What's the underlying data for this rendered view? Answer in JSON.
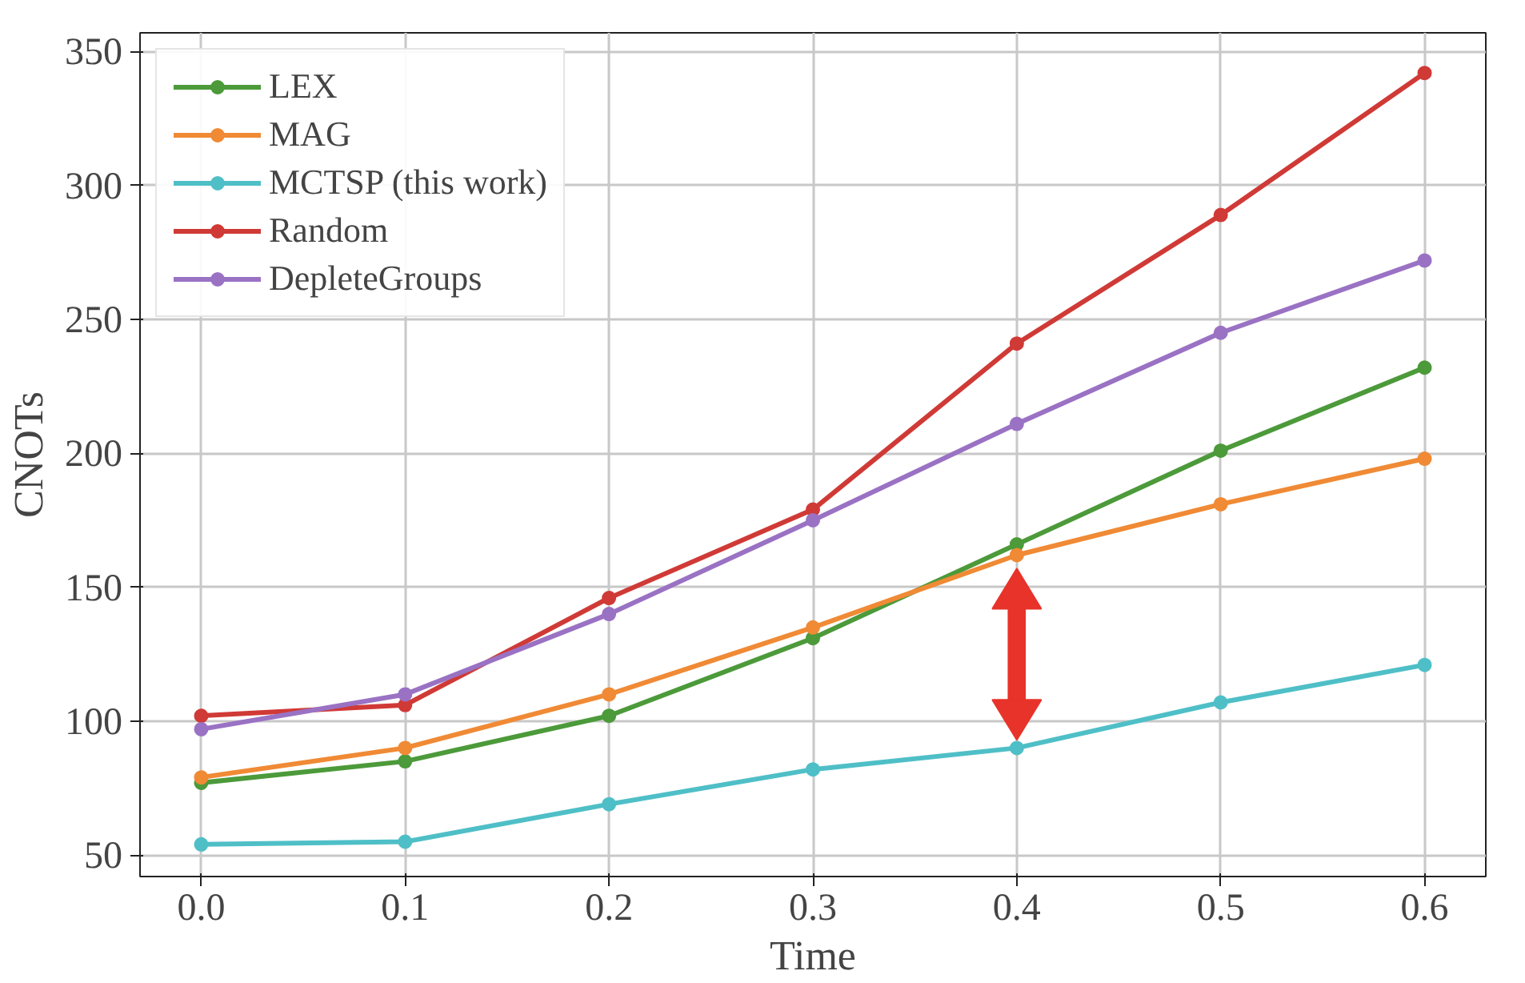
{
  "chart_data": {
    "type": "line",
    "xlabel": "Time",
    "ylabel": "CNOTs",
    "x": [
      0.0,
      0.1,
      0.2,
      0.3,
      0.4,
      0.5,
      0.6
    ],
    "series": [
      {
        "name": "LEX",
        "color": "#4c9a3a",
        "values": [
          77,
          85,
          102,
          131,
          166,
          201,
          232
        ]
      },
      {
        "name": "MAG",
        "color": "#f08a35",
        "values": [
          79,
          90,
          110,
          135,
          162,
          181,
          198
        ]
      },
      {
        "name": "MCTSP (this work)",
        "color": "#4fbfc7",
        "values": [
          54,
          55,
          69,
          82,
          90,
          107,
          121
        ]
      },
      {
        "name": "Random",
        "color": "#d03a36",
        "values": [
          102,
          106,
          146,
          179,
          241,
          289,
          342
        ]
      },
      {
        "name": "DepleteGroups",
        "color": "#9a72c4",
        "values": [
          97,
          110,
          140,
          175,
          211,
          245,
          272
        ]
      }
    ],
    "xlim": [
      -0.03,
      0.63
    ],
    "ylim": [
      42,
      357
    ],
    "xticks": [
      {
        "value": 0.0,
        "label": "0.0"
      },
      0.1,
      0.2,
      0.3,
      0.4,
      0.5,
      0.6
    ],
    "yticks": [
      50,
      100,
      150,
      200,
      250,
      300,
      350
    ],
    "grid": true,
    "legend": "top left",
    "marker": "circle",
    "line_style": "solid"
  }
}
